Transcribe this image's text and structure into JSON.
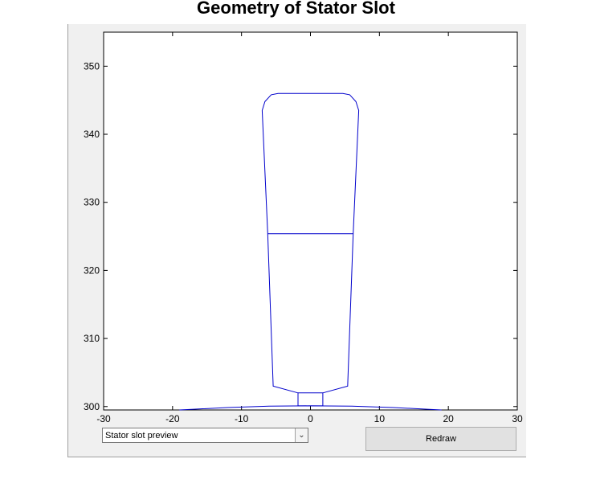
{
  "chart_data": {
    "type": "line",
    "title": "Geometry of Stator Slot",
    "xlabel": "",
    "ylabel": "",
    "xlim": [
      -30,
      30
    ],
    "ylim": [
      299.5,
      355
    ],
    "xticks": [
      -30,
      -20,
      -10,
      0,
      10,
      20,
      30
    ],
    "yticks": [
      300,
      310,
      320,
      330,
      340,
      350
    ],
    "grid": false,
    "line_color": "#0000cc",
    "series": [
      {
        "points": [
          [
            -1.8,
            302
          ],
          [
            1.8,
            302
          ],
          [
            1.8,
            300.1
          ],
          [
            -1.8,
            300.1
          ],
          [
            -1.8,
            302
          ]
        ]
      },
      {
        "points": [
          [
            1.8,
            302
          ],
          [
            5.4,
            303
          ],
          [
            6.2,
            325.4
          ],
          [
            7,
            343.5
          ],
          [
            6.6,
            344.8
          ],
          [
            5.7,
            345.8
          ],
          [
            4.7,
            346
          ],
          [
            0,
            346
          ],
          [
            -4.7,
            346
          ],
          [
            -5.7,
            345.8
          ],
          [
            -6.6,
            344.8
          ],
          [
            -7,
            343.5
          ],
          [
            -6.2,
            325.4
          ],
          [
            -5.4,
            303
          ],
          [
            -1.8,
            302
          ]
        ]
      },
      {
        "points": [
          [
            -6.2,
            325.4
          ],
          [
            6.2,
            325.4
          ]
        ]
      },
      {
        "points": [
          [
            -19,
            299.5
          ],
          [
            -12,
            299.85
          ],
          [
            -6,
            300.05
          ],
          [
            0,
            300.1
          ],
          [
            6,
            300.05
          ],
          [
            12,
            299.85
          ],
          [
            19,
            299.5
          ]
        ]
      }
    ]
  },
  "controls": {
    "view_select": {
      "value": "Stator slot preview"
    },
    "redraw_label": "Redraw"
  }
}
